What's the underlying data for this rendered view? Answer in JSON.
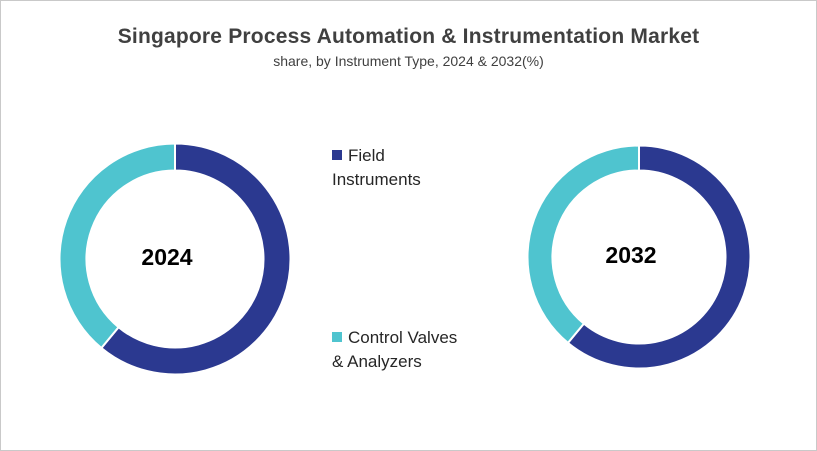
{
  "chart_data": {
    "type": "pie",
    "variant": "donut",
    "title": "Singapore Process Automation & Instrumentation Market",
    "subtitle": "share, by Instrument Type, 2024 & 2032(%)",
    "legend": {
      "placement": "center",
      "entries": [
        {
          "line1": "Field",
          "line2": "Instruments"
        },
        {
          "line1": "Control Valves",
          "line2": "& Analyzers"
        }
      ]
    },
    "colors": [
      "#2B3990",
      "#4FC4CF"
    ],
    "charts": [
      {
        "label": "2024",
        "values": [
          61,
          39
        ]
      },
      {
        "label": "2032",
        "values": [
          61,
          39
        ]
      }
    ]
  }
}
